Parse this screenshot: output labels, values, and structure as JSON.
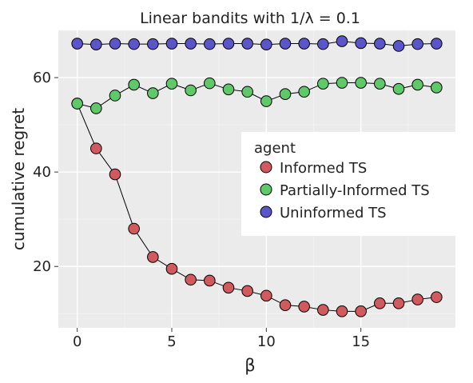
{
  "chart_data": {
    "type": "line",
    "title": "Linear bandits with 1/λ = 0.1",
    "xlabel": "β",
    "ylabel": "cumulative regret",
    "xlim": [
      -1,
      20
    ],
    "ylim": [
      7,
      70
    ],
    "xticks": [
      0,
      5,
      10,
      15
    ],
    "yticks": [
      20,
      40,
      60
    ],
    "grid": true,
    "legend_position": "right",
    "legend_title": "agent",
    "x": [
      0,
      1,
      2,
      3,
      4,
      5,
      6,
      7,
      8,
      9,
      10,
      11,
      12,
      13,
      14,
      15,
      16,
      17,
      18,
      19
    ],
    "series": [
      {
        "name": "Informed TS",
        "color": "#d05a5e",
        "values": [
          54.5,
          45,
          39.5,
          28,
          22,
          19.5,
          17.2,
          17,
          15.5,
          14.8,
          13.8,
          11.8,
          11.5,
          10.8,
          10.5,
          10.5,
          12.2,
          12.2,
          13,
          13.5
        ]
      },
      {
        "name": "Partially-Informed TS",
        "color": "#5fc869",
        "values": [
          54.5,
          53.5,
          56.2,
          58.5,
          56.7,
          58.7,
          57.3,
          58.8,
          57.5,
          57.0,
          55.0,
          56.5,
          57.0,
          58.7,
          58.9,
          58.9,
          58.7,
          57.6,
          58.5,
          57.9
        ]
      },
      {
        "name": "Uninformed TS",
        "color": "#5a55c8",
        "values": [
          67.2,
          67.0,
          67.2,
          67.1,
          67.1,
          67.2,
          67.2,
          67.1,
          67.2,
          67.2,
          67.0,
          67.2,
          67.2,
          67.1,
          67.7,
          67.3,
          67.2,
          66.7,
          67.1,
          67.2
        ]
      }
    ]
  }
}
